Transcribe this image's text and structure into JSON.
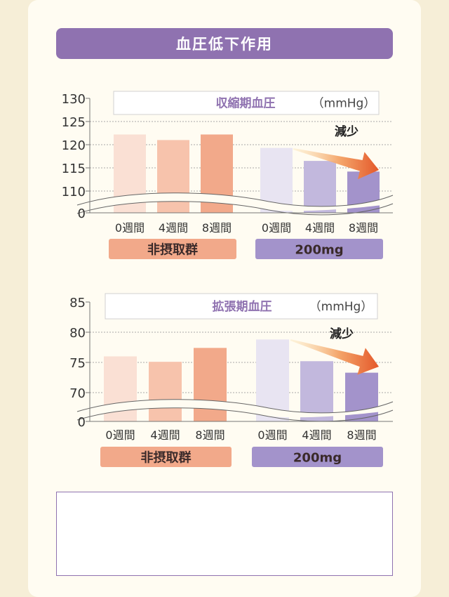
{
  "header": {
    "title": "血圧低下作用"
  },
  "note": {
    "text": ""
  },
  "chart_data": [
    {
      "type": "bar",
      "title": "収縮期血圧",
      "unit": "（mmHg）",
      "yticks": [
        "130",
        "125",
        "120",
        "115",
        "110",
        "0"
      ],
      "ytick_values": [
        130,
        125,
        120,
        115,
        110
      ],
      "ylim": [
        110,
        130
      ],
      "axis_break": true,
      "categories": [
        "0週間",
        "4週間",
        "8週間"
      ],
      "series": [
        {
          "name": "非摂取群",
          "values": [
            122.2,
            121.0,
            122.2
          ],
          "colors": [
            "#fae0d4",
            "#f7c3ac",
            "#f2a98a"
          ]
        },
        {
          "name": "200mg",
          "values": [
            119.3,
            116.5,
            114.2
          ],
          "colors": [
            "#e8e4f2",
            "#c2b8dd",
            "#a393cb"
          ]
        }
      ],
      "annotation": "減少",
      "group_label_colors": [
        "#f2a98a",
        "#a393cb"
      ]
    },
    {
      "type": "bar",
      "title": "拡張期血圧",
      "unit": "（mmHg）",
      "yticks": [
        "85",
        "80",
        "75",
        "70",
        "0"
      ],
      "ytick_values": [
        85,
        80,
        75,
        70
      ],
      "ylim": [
        70,
        85
      ],
      "axis_break": true,
      "categories": [
        "0週間",
        "4週間",
        "8週間"
      ],
      "series": [
        {
          "name": "非摂取群",
          "values": [
            76.0,
            75.1,
            77.4
          ],
          "colors": [
            "#fae0d4",
            "#f7c3ac",
            "#f2a98a"
          ]
        },
        {
          "name": "200mg",
          "values": [
            78.8,
            75.2,
            73.3
          ],
          "colors": [
            "#e8e4f2",
            "#c2b8dd",
            "#a393cb"
          ]
        }
      ],
      "annotation": "減少",
      "group_label_colors": [
        "#f2a98a",
        "#a393cb"
      ]
    }
  ]
}
